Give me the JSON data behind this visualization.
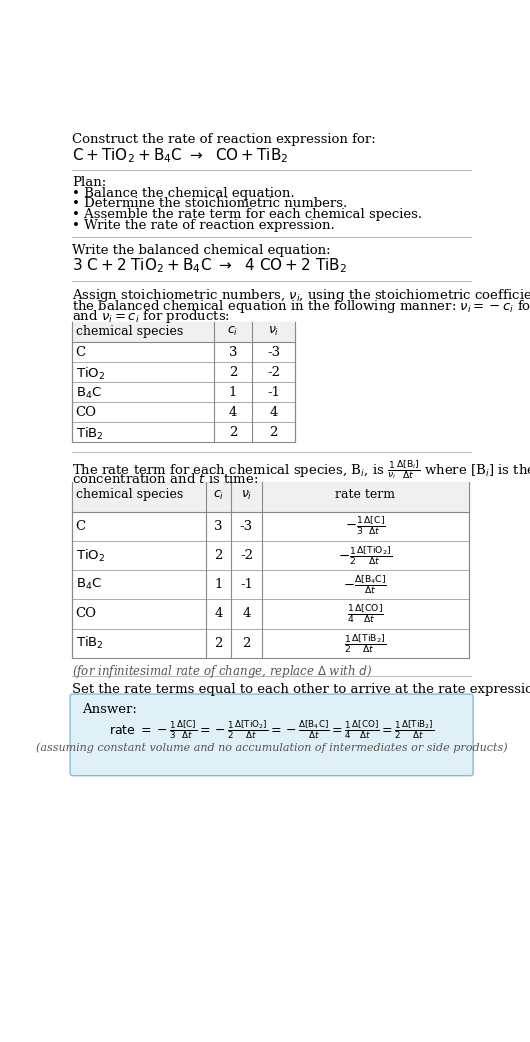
{
  "bg_color": "#ffffff",
  "text_color": "#000000",
  "plan_items": [
    "• Balance the chemical equation.",
    "• Determine the stoichiometric numbers.",
    "• Assemble the rate term for each chemical species.",
    "• Write the rate of reaction expression."
  ],
  "table1_species": [
    "C",
    "TiO_2",
    "B_4C",
    "CO",
    "TiB_2"
  ],
  "table1_ci": [
    "3",
    "2",
    "1",
    "4",
    "2"
  ],
  "table1_nu": [
    "-3",
    "-2",
    "-1",
    "4",
    "2"
  ],
  "table2_species": [
    "C",
    "TiO_2",
    "B_4C",
    "CO",
    "TiB_2"
  ],
  "table2_ci": [
    "3",
    "2",
    "1",
    "4",
    "2"
  ],
  "table2_nu": [
    "-3",
    "-2",
    "-1",
    "4",
    "2"
  ],
  "answer_bg": "#dff0f7",
  "answer_border": "#85bdd4",
  "line_color": "#aaaaaa"
}
